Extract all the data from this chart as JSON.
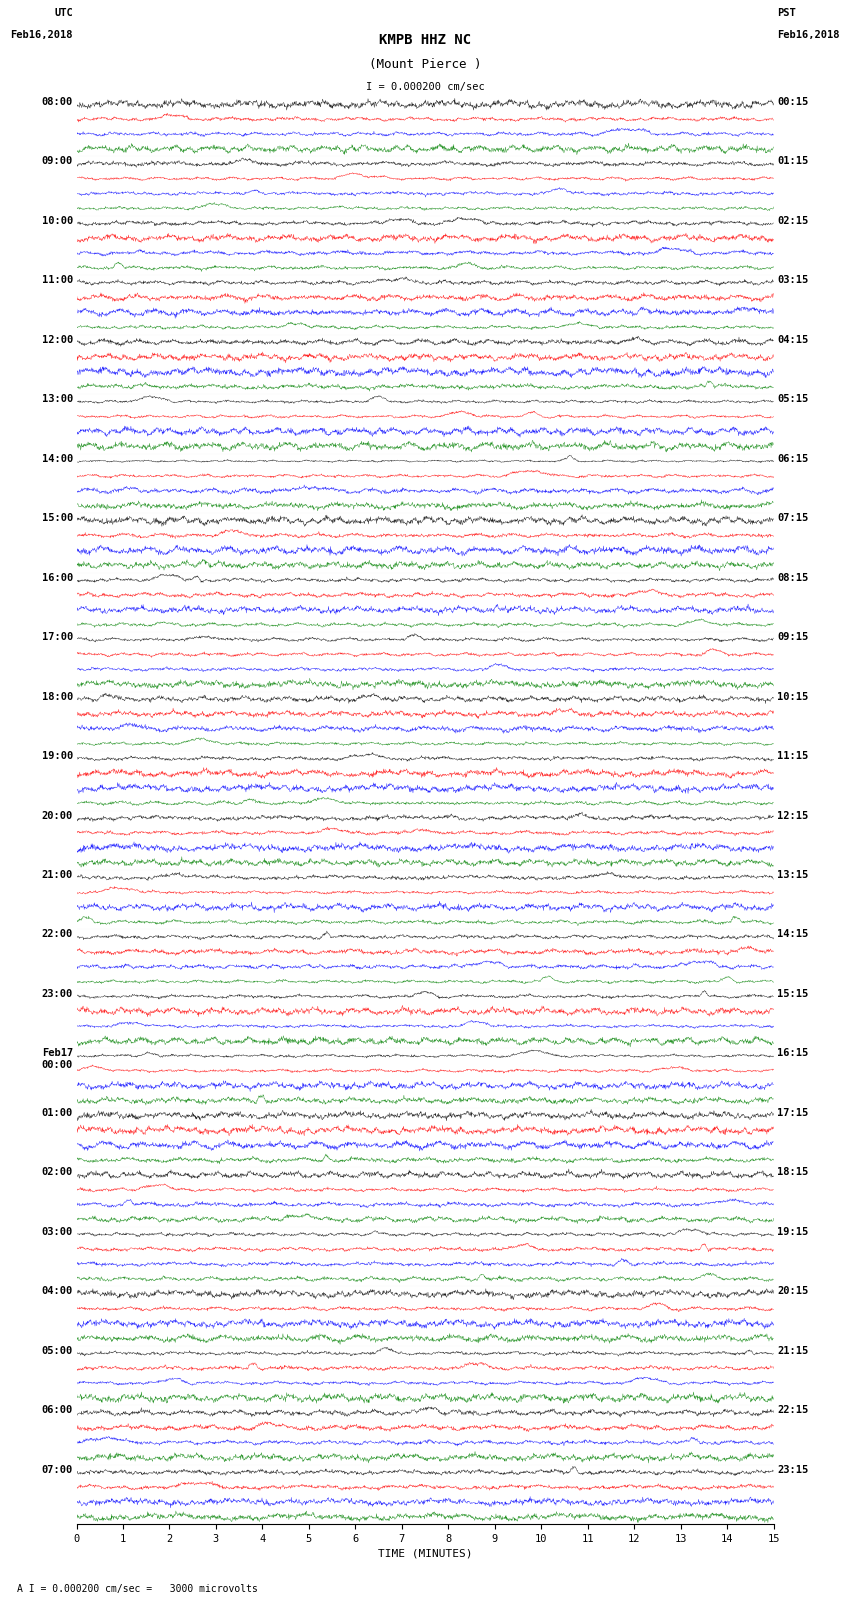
{
  "title_line1": "KMPB HHZ NC",
  "title_line2": "(Mount Pierce )",
  "scale_label": "I = 0.000200 cm/sec",
  "utc_label": "UTC",
  "pst_label": "PST",
  "left_date": "Feb16,2018",
  "right_date": "Feb16,2018",
  "xlabel": "TIME (MINUTES)",
  "bottom_note": "A I = 0.000200 cm/sec =   3000 microvolts",
  "left_times_utc": [
    "08:00",
    "09:00",
    "10:00",
    "11:00",
    "12:00",
    "13:00",
    "14:00",
    "15:00",
    "16:00",
    "17:00",
    "18:00",
    "19:00",
    "20:00",
    "21:00",
    "22:00",
    "23:00",
    "Feb17\n00:00",
    "01:00",
    "02:00",
    "03:00",
    "04:00",
    "05:00",
    "06:00",
    "07:00"
  ],
  "right_times_pst": [
    "00:15",
    "01:15",
    "02:15",
    "03:15",
    "04:15",
    "05:15",
    "06:15",
    "07:15",
    "08:15",
    "09:15",
    "10:15",
    "11:15",
    "12:15",
    "13:15",
    "14:15",
    "15:15",
    "16:15",
    "17:15",
    "18:15",
    "19:15",
    "20:15",
    "21:15",
    "22:15",
    "23:15"
  ],
  "num_rows": 24,
  "traces_per_row": 4,
  "time_minutes": 15,
  "colors": [
    "black",
    "red",
    "blue",
    "green"
  ],
  "bg_color": "white",
  "fig_width": 8.5,
  "fig_height": 16.13,
  "dpi": 100,
  "xticks": [
    0,
    1,
    2,
    3,
    4,
    5,
    6,
    7,
    8,
    9,
    10,
    11,
    12,
    13,
    14,
    15
  ],
  "title_fontsize": 10,
  "label_fontsize": 8,
  "tick_fontsize": 7.5,
  "seed": 42
}
